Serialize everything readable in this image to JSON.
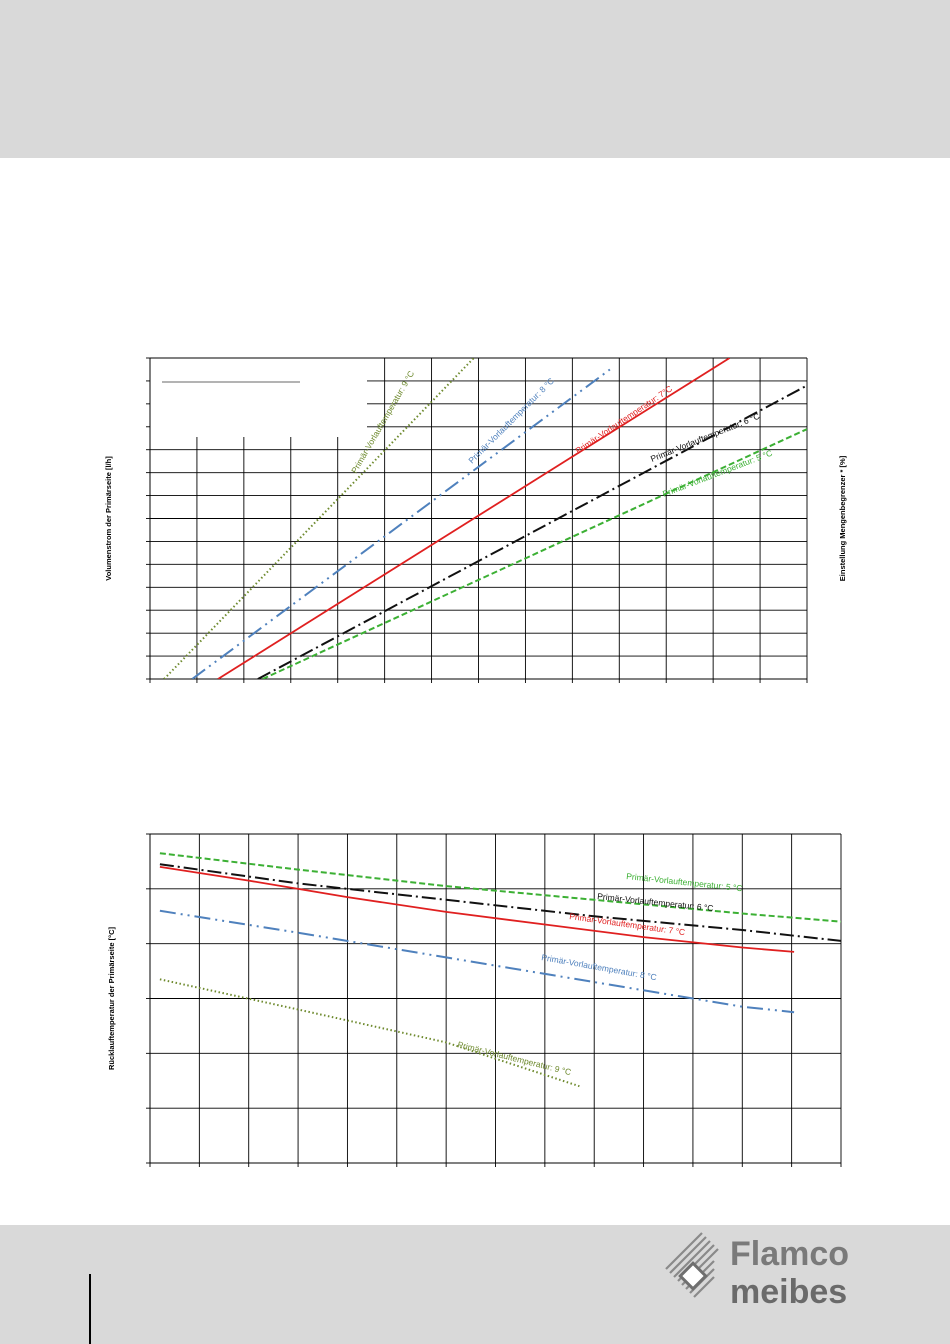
{
  "chart_data": [
    {
      "type": "line",
      "xlabel": "",
      "ylabel": "Volumenstrom der Primärseite  [l/h]",
      "ylabel_right": "Einstellung Mengenbegrenzer * [%]",
      "x_gridlines": 14,
      "y_gridlines": 14,
      "xlim": [
        0,
        14
      ],
      "ylim": [
        0,
        14
      ],
      "grid": true,
      "series": [
        {
          "name": "Primär-Vorlauftemperatur: 9 °C",
          "color": "#6e8a2e",
          "style": "dotted",
          "x": [
            0.3,
            6.9
          ],
          "y": [
            0,
            14
          ]
        },
        {
          "name": "Primär-Vorlauftemperatur: 8 °C",
          "color": "#4f81bd",
          "style": "dash-dot-dot",
          "x": [
            0.9,
            9.8
          ],
          "y": [
            0,
            13.5
          ]
        },
        {
          "name": "Primär-Vorlauftemperatur: 7°C",
          "color": "#e02020",
          "style": "solid",
          "x": [
            1.45,
            12.35
          ],
          "y": [
            0,
            14
          ]
        },
        {
          "name": "Primär-Vorlauftemperatur: 6 °C",
          "color": "#111111",
          "style": "dash-dot",
          "x": [
            2.3,
            14.0
          ],
          "y": [
            0,
            12.8
          ]
        },
        {
          "name": "Primär-Vorlauftemperatur: 5 °C",
          "color": "#3cb034",
          "style": "dashed",
          "x": [
            2.4,
            14.0
          ],
          "y": [
            0,
            10.9
          ]
        }
      ]
    },
    {
      "type": "line",
      "xlabel": "",
      "ylabel": "Rücklauftemperatur der Primärseite [°C]",
      "x_gridlines": 14,
      "y_gridlines": 6,
      "xlim": [
        0,
        14
      ],
      "ylim": [
        0,
        6
      ],
      "grid": true,
      "series": [
        {
          "name": "Primär-Vorlauftemperatur: 5 °C",
          "color": "#3cb034",
          "style": "dashed",
          "x": [
            0.2,
            3,
            6,
            9,
            12,
            14
          ],
          "y": [
            5.65,
            5.35,
            5.05,
            4.8,
            4.55,
            4.4
          ]
        },
        {
          "name": "Primär-Vorlauftemperatur: 6 °C",
          "color": "#111111",
          "style": "dash-dot",
          "x": [
            0.2,
            3,
            6,
            9,
            12,
            14
          ],
          "y": [
            5.45,
            5.1,
            4.8,
            4.5,
            4.25,
            4.05
          ]
        },
        {
          "name": "Primär-Vorlauftemperatur: 7 °C",
          "color": "#e02020",
          "style": "solid",
          "x": [
            0.2,
            2,
            4,
            6,
            8,
            10,
            12,
            13.05
          ],
          "y": [
            5.4,
            5.15,
            4.85,
            4.58,
            4.35,
            4.12,
            3.93,
            3.85
          ]
        },
        {
          "name": "Primär-Vorlauftemperatur: 8 °C",
          "color": "#4f81bd",
          "style": "dash-dot-dot",
          "x": [
            0.2,
            3,
            6,
            9,
            12,
            13.05
          ],
          "y": [
            4.6,
            4.2,
            3.75,
            3.3,
            2.85,
            2.75
          ]
        },
        {
          "name": "Primär-Vorlauftemperatur: 9 °C",
          "color": "#6e8a2e",
          "style": "dotted",
          "x": [
            0.2,
            3,
            6,
            8.7
          ],
          "y": [
            3.35,
            2.8,
            2.2,
            1.4
          ]
        }
      ]
    }
  ],
  "logo": {
    "line1": "Flamco",
    "line2": "meibes",
    "color": "#7a7a7a"
  }
}
